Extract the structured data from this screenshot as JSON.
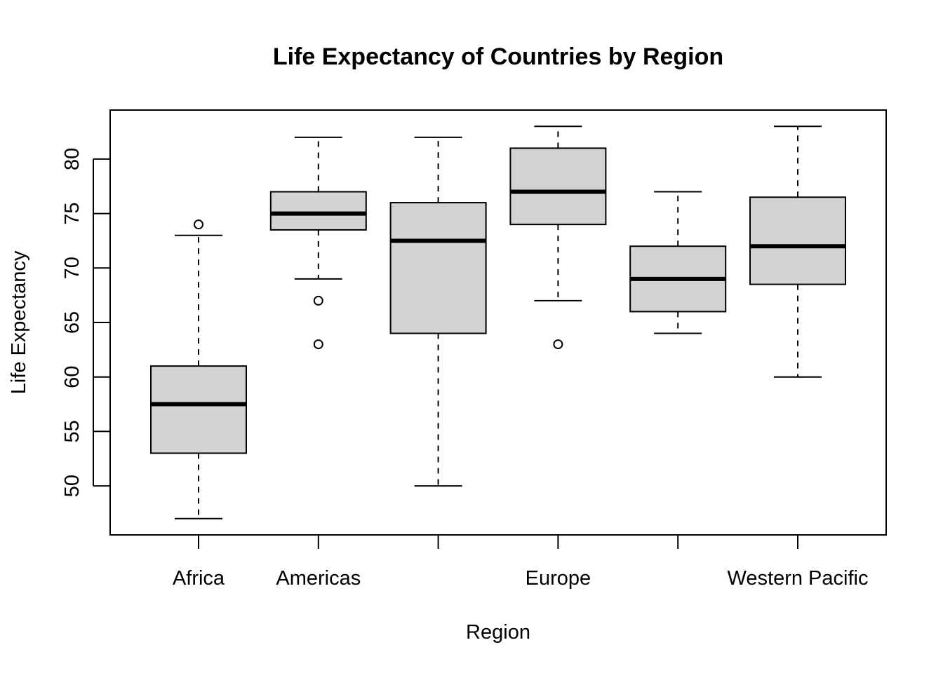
{
  "chart_data": {
    "type": "boxplot",
    "title": "Life Expectancy of Countries by Region",
    "xlabel": "Region",
    "ylabel": "Life Expectancy",
    "y_ticks": [
      50,
      55,
      60,
      65,
      70,
      75,
      80
    ],
    "ylim": [
      45.5,
      84.5
    ],
    "categories": [
      "Africa",
      "Americas",
      "",
      "Europe",
      "",
      "Western Pacific"
    ],
    "boxes": [
      {
        "whisker_low": 47,
        "q1": 53,
        "median": 57.5,
        "q3": 61,
        "whisker_high": 73,
        "outliers": [
          74
        ]
      },
      {
        "whisker_low": 69,
        "q1": 73.5,
        "median": 75,
        "q3": 77,
        "whisker_high": 82,
        "outliers": [
          67,
          63
        ]
      },
      {
        "whisker_low": 50,
        "q1": 64,
        "median": 72.5,
        "q3": 76,
        "whisker_high": 82,
        "outliers": []
      },
      {
        "whisker_low": 67,
        "q1": 74,
        "median": 77,
        "q3": 81,
        "whisker_high": 83,
        "outliers": [
          63
        ]
      },
      {
        "whisker_low": 64,
        "q1": 66,
        "median": 69,
        "q3": 72,
        "whisker_high": 77,
        "outliers": []
      },
      {
        "whisker_low": 60,
        "q1": 68.5,
        "median": 72,
        "q3": 76.5,
        "whisker_high": 83,
        "outliers": []
      }
    ],
    "box_fill": "#d3d3d3",
    "grid": false
  }
}
